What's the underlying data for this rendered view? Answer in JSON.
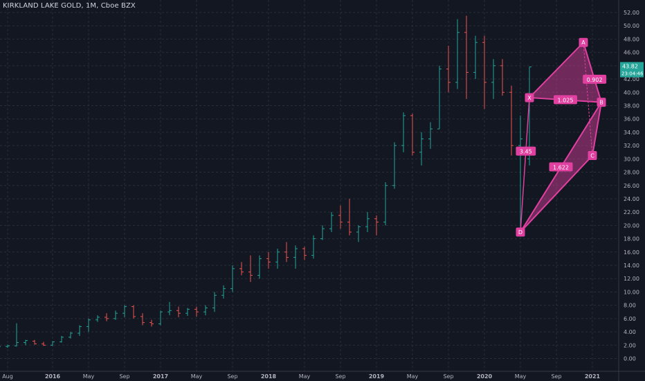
{
  "header": {
    "title": "KIRKLAND LAKE GOLD, 1M, Cboe BZX"
  },
  "price_badge": {
    "value": "43.82",
    "time": "23:04:46"
  },
  "colors": {
    "background": "#131722",
    "up": "#26a69a",
    "down": "#ef5350",
    "pattern": "#e040a0",
    "grid": "#2a2e39",
    "badge": "#26a69a"
  },
  "chart_data": {
    "type": "ohlc",
    "title": "KIRKLAND LAKE GOLD, 1M, Cboe BZX",
    "ylim": [
      0,
      52
    ],
    "y_ticks": [
      0,
      2,
      4,
      6,
      8,
      10,
      12,
      14,
      16,
      18,
      20,
      22,
      24,
      26,
      28,
      30,
      32,
      34,
      36,
      38,
      40,
      42,
      44,
      46,
      48,
      50,
      52
    ],
    "y_tick_labels": [
      "0.00",
      "2.00",
      "4.00",
      "6.00",
      "8.00",
      "10.00",
      "12.00",
      "14.00",
      "16.00",
      "18.00",
      "20.00",
      "22.00",
      "24.00",
      "26.00",
      "28.00",
      "30.00",
      "32.00",
      "34.00",
      "36.00",
      "38.00",
      "40.00",
      "42.00",
      "44.00",
      "46.00",
      "48.00",
      "50.00",
      "52.00"
    ],
    "x_ticks": [
      {
        "label": "Aug",
        "month": "2015-08"
      },
      {
        "label": "2016",
        "month": "2016-01"
      },
      {
        "label": "May",
        "month": "2016-05"
      },
      {
        "label": "Sep",
        "month": "2016-09"
      },
      {
        "label": "2017",
        "month": "2017-01"
      },
      {
        "label": "May",
        "month": "2017-05"
      },
      {
        "label": "Sep",
        "month": "2017-09"
      },
      {
        "label": "2018",
        "month": "2018-01"
      },
      {
        "label": "May",
        "month": "2018-05"
      },
      {
        "label": "Sep",
        "month": "2018-09"
      },
      {
        "label": "2019",
        "month": "2019-01"
      },
      {
        "label": "May",
        "month": "2019-05"
      },
      {
        "label": "Sep",
        "month": "2019-09"
      },
      {
        "label": "2020",
        "month": "2020-01"
      },
      {
        "label": "May",
        "month": "2020-05"
      },
      {
        "label": "Sep",
        "month": "2020-09"
      },
      {
        "label": "2021",
        "month": "2021-01"
      }
    ],
    "bars": [
      {
        "month": "2015-07",
        "o": 1.8,
        "h": 2.0,
        "l": 1.6,
        "c": 1.8
      },
      {
        "month": "2015-08",
        "o": 1.8,
        "h": 2.1,
        "l": 1.6,
        "c": 1.9
      },
      {
        "month": "2015-09",
        "o": 1.9,
        "h": 5.3,
        "l": 1.8,
        "c": 2.4
      },
      {
        "month": "2015-10",
        "o": 2.4,
        "h": 2.8,
        "l": 2.0,
        "c": 2.7
      },
      {
        "month": "2015-11",
        "o": 2.6,
        "h": 2.8,
        "l": 2.1,
        "c": 2.2
      },
      {
        "month": "2015-12",
        "o": 2.2,
        "h": 2.5,
        "l": 1.9,
        "c": 2.0
      },
      {
        "month": "2016-01",
        "o": 2.0,
        "h": 2.6,
        "l": 1.9,
        "c": 2.5
      },
      {
        "month": "2016-02",
        "o": 2.5,
        "h": 3.4,
        "l": 2.4,
        "c": 3.2
      },
      {
        "month": "2016-03",
        "o": 3.2,
        "h": 4.0,
        "l": 3.0,
        "c": 3.8
      },
      {
        "month": "2016-04",
        "o": 3.8,
        "h": 5.0,
        "l": 3.4,
        "c": 4.8
      },
      {
        "month": "2016-05",
        "o": 4.8,
        "h": 6.0,
        "l": 4.0,
        "c": 5.8
      },
      {
        "month": "2016-06",
        "o": 5.8,
        "h": 6.5,
        "l": 5.5,
        "c": 6.2
      },
      {
        "month": "2016-07",
        "o": 6.2,
        "h": 6.8,
        "l": 5.6,
        "c": 6.0
      },
      {
        "month": "2016-08",
        "o": 6.0,
        "h": 7.2,
        "l": 5.8,
        "c": 6.8
      },
      {
        "month": "2016-09",
        "o": 6.8,
        "h": 8.0,
        "l": 6.2,
        "c": 7.8
      },
      {
        "month": "2016-10",
        "o": 7.8,
        "h": 8.0,
        "l": 6.0,
        "c": 6.3
      },
      {
        "month": "2016-11",
        "o": 6.3,
        "h": 6.8,
        "l": 5.0,
        "c": 5.4
      },
      {
        "month": "2016-12",
        "o": 5.4,
        "h": 5.8,
        "l": 4.8,
        "c": 5.2
      },
      {
        "month": "2017-01",
        "o": 5.2,
        "h": 7.2,
        "l": 5.0,
        "c": 7.0
      },
      {
        "month": "2017-02",
        "o": 7.0,
        "h": 8.5,
        "l": 6.5,
        "c": 7.2
      },
      {
        "month": "2017-03",
        "o": 7.2,
        "h": 7.8,
        "l": 6.2,
        "c": 6.8
      },
      {
        "month": "2017-04",
        "o": 6.8,
        "h": 7.6,
        "l": 6.4,
        "c": 7.4
      },
      {
        "month": "2017-05",
        "o": 7.4,
        "h": 7.8,
        "l": 6.3,
        "c": 7.0
      },
      {
        "month": "2017-06",
        "o": 7.0,
        "h": 8.0,
        "l": 6.5,
        "c": 7.6
      },
      {
        "month": "2017-07",
        "o": 7.6,
        "h": 10.0,
        "l": 7.0,
        "c": 9.5
      },
      {
        "month": "2017-08",
        "o": 9.5,
        "h": 11.0,
        "l": 9.0,
        "c": 10.5
      },
      {
        "month": "2017-09",
        "o": 10.5,
        "h": 14.0,
        "l": 10.0,
        "c": 13.5
      },
      {
        "month": "2017-10",
        "o": 13.5,
        "h": 14.5,
        "l": 12.5,
        "c": 13.0
      },
      {
        "month": "2017-11",
        "o": 13.0,
        "h": 15.5,
        "l": 11.5,
        "c": 12.5
      },
      {
        "month": "2017-12",
        "o": 12.5,
        "h": 15.5,
        "l": 12.0,
        "c": 15.0
      },
      {
        "month": "2018-01",
        "o": 15.0,
        "h": 16.0,
        "l": 13.5,
        "c": 14.5
      },
      {
        "month": "2018-02",
        "o": 14.5,
        "h": 16.5,
        "l": 13.5,
        "c": 16.0
      },
      {
        "month": "2018-03",
        "o": 16.0,
        "h": 17.5,
        "l": 14.5,
        "c": 15.2
      },
      {
        "month": "2018-04",
        "o": 15.2,
        "h": 17.0,
        "l": 13.5,
        "c": 16.5
      },
      {
        "month": "2018-05",
        "o": 16.5,
        "h": 16.8,
        "l": 14.8,
        "c": 15.5
      },
      {
        "month": "2018-06",
        "o": 15.5,
        "h": 18.5,
        "l": 15.0,
        "c": 18.0
      },
      {
        "month": "2018-07",
        "o": 18.0,
        "h": 20.0,
        "l": 17.8,
        "c": 19.5
      },
      {
        "month": "2018-08",
        "o": 19.5,
        "h": 22.0,
        "l": 19.0,
        "c": 21.5
      },
      {
        "month": "2018-09",
        "o": 21.5,
        "h": 23.0,
        "l": 19.5,
        "c": 20.5
      },
      {
        "month": "2018-10",
        "o": 20.5,
        "h": 24.0,
        "l": 18.5,
        "c": 19.0
      },
      {
        "month": "2018-11",
        "o": 19.0,
        "h": 20.0,
        "l": 17.5,
        "c": 19.8
      },
      {
        "month": "2018-12",
        "o": 19.8,
        "h": 22.0,
        "l": 19.0,
        "c": 21.0
      },
      {
        "month": "2019-01",
        "o": 21.0,
        "h": 21.5,
        "l": 18.5,
        "c": 20.5
      },
      {
        "month": "2019-02",
        "o": 20.5,
        "h": 26.5,
        "l": 20.0,
        "c": 26.0
      },
      {
        "month": "2019-03",
        "o": 26.0,
        "h": 32.5,
        "l": 25.5,
        "c": 32.0
      },
      {
        "month": "2019-04",
        "o": 32.0,
        "h": 37.0,
        "l": 31.0,
        "c": 36.5
      },
      {
        "month": "2019-05",
        "o": 36.5,
        "h": 36.8,
        "l": 30.5,
        "c": 31.0
      },
      {
        "month": "2019-06",
        "o": 31.0,
        "h": 34.0,
        "l": 29.0,
        "c": 33.0
      },
      {
        "month": "2019-07",
        "o": 33.0,
        "h": 35.5,
        "l": 31.5,
        "c": 34.5
      },
      {
        "month": "2019-08",
        "o": 34.5,
        "h": 44.0,
        "l": 34.5,
        "c": 43.5
      },
      {
        "month": "2019-09",
        "o": 43.5,
        "h": 47.0,
        "l": 40.0,
        "c": 41.5
      },
      {
        "month": "2019-10",
        "o": 41.5,
        "h": 51.0,
        "l": 40.5,
        "c": 49.0
      },
      {
        "month": "2019-11",
        "o": 49.0,
        "h": 51.5,
        "l": 39.0,
        "c": 43.0
      },
      {
        "month": "2019-12",
        "o": 43.0,
        "h": 48.5,
        "l": 42.0,
        "c": 47.5
      },
      {
        "month": "2020-01",
        "o": 47.5,
        "h": 48.5,
        "l": 37.5,
        "c": 41.5
      },
      {
        "month": "2020-02",
        "o": 41.5,
        "h": 45.0,
        "l": 39.0,
        "c": 44.0
      },
      {
        "month": "2020-03",
        "o": 44.0,
        "h": 45.0,
        "l": 39.5,
        "c": 40.0
      },
      {
        "month": "2020-04",
        "o": 40.0,
        "h": 41.0,
        "l": 30.5,
        "c": 32.0
      },
      {
        "month": "2020-05",
        "o": 32.0,
        "h": 36.5,
        "l": 19.0,
        "c": 33.0
      },
      {
        "month": "2020-06",
        "o": 30.0,
        "h": 43.82,
        "l": 29.0,
        "c": 43.82
      }
    ],
    "pattern": {
      "points": [
        {
          "label": "X",
          "month": "2020-06",
          "price": 39.2
        },
        {
          "label": "A",
          "month": "2020-12",
          "price": 47.5
        },
        {
          "label": "B",
          "month": "2021-02",
          "price": 38.5
        },
        {
          "label": "C",
          "month": "2021-01",
          "price": 30.5
        },
        {
          "label": "D",
          "month": "2020-05",
          "price": 19.0
        }
      ],
      "ratios": [
        {
          "label": "1.025",
          "from": "X",
          "to": "B"
        },
        {
          "label": "0.902",
          "from": "A",
          "to": "B"
        },
        {
          "label": "1.622",
          "from": "D",
          "to": "B"
        },
        {
          "label": "3.45",
          "from": "X",
          "to": "D"
        }
      ]
    }
  }
}
